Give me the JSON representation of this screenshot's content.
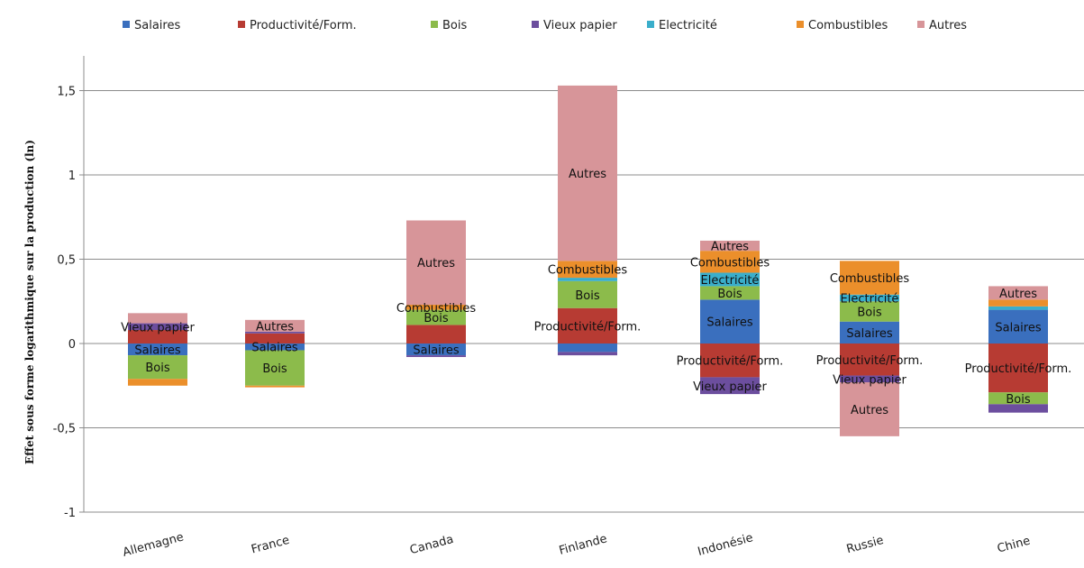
{
  "chart_data": {
    "type": "bar",
    "stacked": true,
    "ylabel": "Effet sous forme logarithmique sur la production (ln)",
    "ylim": [
      -1,
      1.7
    ],
    "y_ticks": [
      -1,
      -0.5,
      0,
      0.5,
      1,
      1.5
    ],
    "y_tick_labels": [
      "-1",
      "-0,5",
      "0",
      "0,5",
      "1",
      "1,5"
    ],
    "gridlines": true,
    "legend_position": "top",
    "categories": [
      "Allemagne",
      "France",
      "Canada",
      "Finlande",
      "Indonésie",
      "Russie",
      "Chine"
    ],
    "series": [
      {
        "name": "Salaires",
        "color": "#3A6FBE",
        "values": [
          -0.07,
          -0.04,
          -0.07,
          -0.05,
          0.26,
          0.13,
          0.2
        ]
      },
      {
        "name": "Productivité/Form.",
        "color": "#B73B33",
        "values": [
          0.08,
          0.06,
          0.11,
          0.21,
          -0.2,
          -0.19,
          -0.29
        ]
      },
      {
        "name": "Bois",
        "color": "#8CBB4B",
        "values": [
          -0.14,
          -0.21,
          0.09,
          0.16,
          0.08,
          0.12,
          -0.07
        ]
      },
      {
        "name": "Vieux papier",
        "color": "#6C4E9E",
        "values": [
          0.04,
          0.01,
          -0.01,
          -0.02,
          -0.1,
          -0.04,
          -0.05
        ]
      },
      {
        "name": "Electricité",
        "color": "#3AAECB",
        "values": [
          0.0,
          0.0,
          0.0,
          0.02,
          0.08,
          0.04,
          0.02
        ]
      },
      {
        "name": "Combustibles",
        "color": "#EB8F2B",
        "values": [
          -0.04,
          -0.01,
          0.03,
          0.1,
          0.13,
          0.2,
          0.04
        ]
      },
      {
        "name": "Autres",
        "color": "#D79599",
        "values": [
          0.06,
          0.07,
          0.5,
          1.04,
          0.06,
          -0.32,
          0.08
        ]
      }
    ],
    "segment_labels": [
      {
        "category": "Allemagne",
        "series": "Vieux papier",
        "text": "Vieux papier"
      },
      {
        "category": "Allemagne",
        "series": "Salaires",
        "text": "Salaires"
      },
      {
        "category": "Allemagne",
        "series": "Bois",
        "text": "Bois"
      },
      {
        "category": "France",
        "series": "Autres",
        "text": "Autres"
      },
      {
        "category": "France",
        "series": "Salaires",
        "text": "Salaires"
      },
      {
        "category": "France",
        "series": "Bois",
        "text": "Bois"
      },
      {
        "category": "Canada",
        "series": "Autres",
        "text": "Autres"
      },
      {
        "category": "Canada",
        "series": "Combustibles",
        "text": "Combustibles"
      },
      {
        "category": "Canada",
        "series": "Bois",
        "text": "Bois"
      },
      {
        "category": "Canada",
        "series": "Salaires",
        "text": "Salaires"
      },
      {
        "category": "Finlande",
        "series": "Autres",
        "text": "Autres"
      },
      {
        "category": "Finlande",
        "series": "Combustibles",
        "text": "Combustibles"
      },
      {
        "category": "Finlande",
        "series": "Bois",
        "text": "Bois"
      },
      {
        "category": "Finlande",
        "series": "Productivité/Form.",
        "text": "Productivité/Form."
      },
      {
        "category": "Indonésie",
        "series": "Autres",
        "text": "Autres"
      },
      {
        "category": "Indonésie",
        "series": "Combustibles",
        "text": "Combustibles"
      },
      {
        "category": "Indonésie",
        "series": "Electricité",
        "text": "Electricité"
      },
      {
        "category": "Indonésie",
        "series": "Bois",
        "text": "Bois"
      },
      {
        "category": "Indonésie",
        "series": "Salaires",
        "text": "Salaires"
      },
      {
        "category": "Indonésie",
        "series": "Productivité/Form.",
        "text": "Productivité/Form."
      },
      {
        "category": "Indonésie",
        "series": "Vieux papier",
        "text": "Vieux papier"
      },
      {
        "category": "Russie",
        "series": "Combustibles",
        "text": "Combustibles"
      },
      {
        "category": "Russie",
        "series": "Electricité",
        "text": "Electricité"
      },
      {
        "category": "Russie",
        "series": "Bois",
        "text": "Bois"
      },
      {
        "category": "Russie",
        "series": "Salaires",
        "text": "Salaires"
      },
      {
        "category": "Russie",
        "series": "Productivité/Form.",
        "text": "Productivité/Form."
      },
      {
        "category": "Russie",
        "series": "Vieux papier",
        "text": "Vieux papier"
      },
      {
        "category": "Russie",
        "series": "Autres",
        "text": "Autres"
      },
      {
        "category": "Chine",
        "series": "Autres",
        "text": "Autres"
      },
      {
        "category": "Chine",
        "series": "Salaires",
        "text": "Salaires"
      },
      {
        "category": "Chine",
        "series": "Productivité/Form.",
        "text": "Productivité/Form."
      },
      {
        "category": "Chine",
        "series": "Bois",
        "text": "Bois"
      }
    ]
  }
}
